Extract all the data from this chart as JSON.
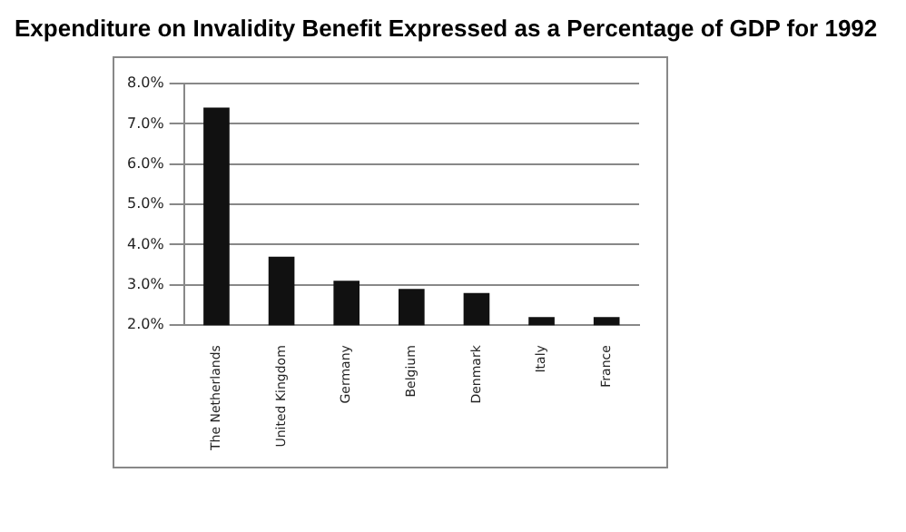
{
  "chart_data": {
    "type": "bar",
    "title": "Expenditure on Invalidity Benefit Expressed as a Percentage of GDP for 1992",
    "categories": [
      "The Netherlands",
      "United Kingdom",
      "Germany",
      "Belgium",
      "Denmark",
      "Italy",
      "France"
    ],
    "values": [
      7.4,
      3.7,
      3.1,
      2.9,
      2.8,
      2.2,
      2.2
    ],
    "color": "#111111",
    "ylim": [
      2,
      8
    ],
    "yticks": [
      {
        "value": 2,
        "label": "2.0%"
      },
      {
        "value": 3,
        "label": "3.0%"
      },
      {
        "value": 4,
        "label": "4.0%"
      },
      {
        "value": 5,
        "label": "5.0%"
      },
      {
        "value": 6,
        "label": "6.0%"
      },
      {
        "value": 7,
        "label": "7.0%"
      },
      {
        "value": 8,
        "label": "8.0%"
      }
    ],
    "grid": "y"
  }
}
